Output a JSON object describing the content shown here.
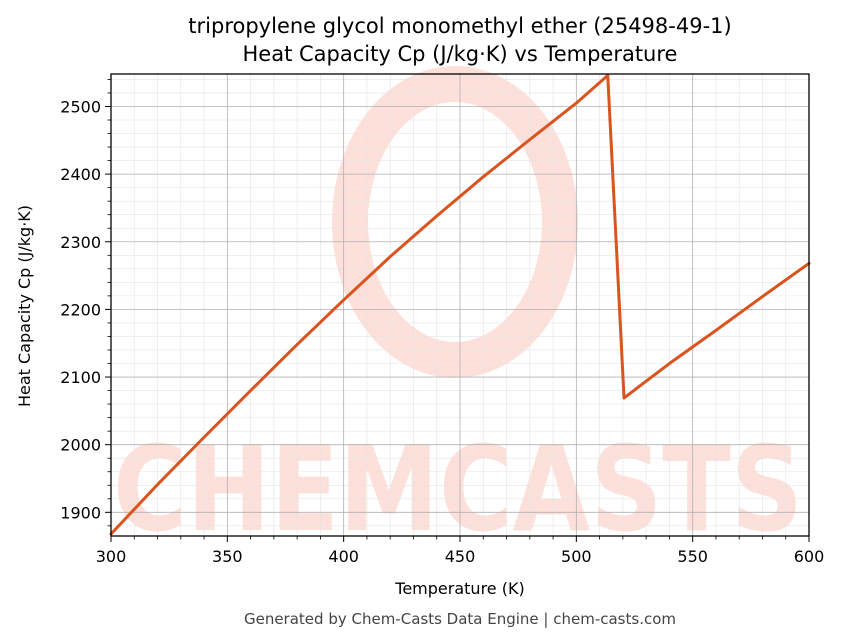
{
  "chart_data": {
    "type": "line",
    "title_line1": "tripropylene glycol monomethyl ether (25498-49-1)",
    "title_line2": "Heat Capacity Cp (J/kg·K) vs Temperature",
    "xlabel": "Temperature (K)",
    "ylabel": "Heat Capacity Cp (J/kg·K)",
    "xlim": [
      300,
      600
    ],
    "ylim": [
      1865,
      2548
    ],
    "x_ticks": [
      300,
      350,
      400,
      450,
      500,
      550,
      600
    ],
    "y_ticks": [
      1900,
      2000,
      2100,
      2200,
      2300,
      2400,
      2500
    ],
    "grid": true,
    "line_color": "#d9541e",
    "series": [
      {
        "x": [
          300,
          320,
          340,
          360,
          380,
          400,
          420,
          440,
          460,
          480,
          500,
          513.5,
          520.5,
          540,
          560,
          580,
          600
        ],
        "values": [
          1868,
          1941,
          2011,
          2080,
          2148,
          2214,
          2278,
          2338,
          2396,
          2451,
          2505,
          2546,
          2069,
          2120,
          2169,
          2219,
          2268
        ]
      }
    ]
  },
  "footer": "Generated by Chem-Casts Data Engine | chem-casts.com",
  "watermark": "CHEMCASTS",
  "watermark_color": "#fde0da"
}
